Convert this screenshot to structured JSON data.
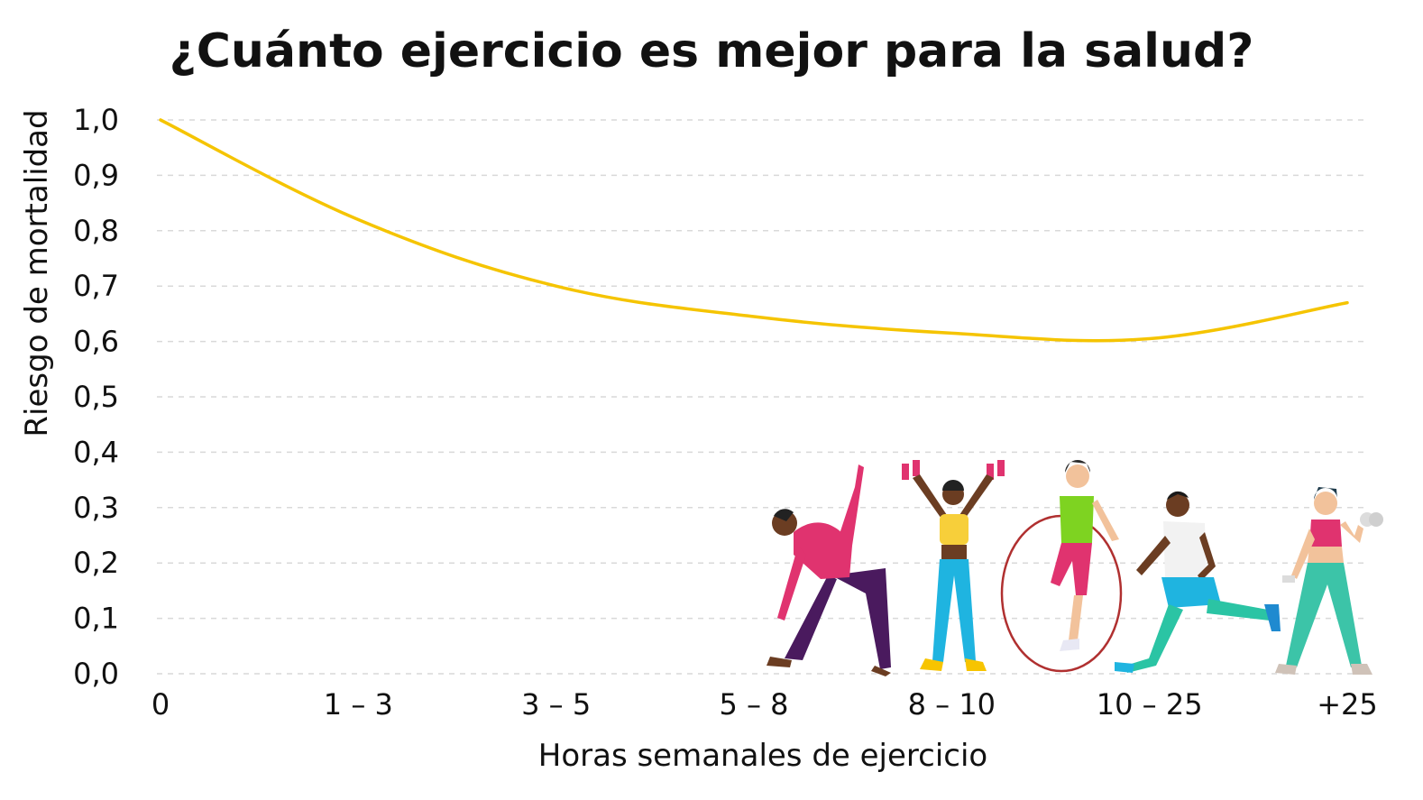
{
  "chart_data": {
    "type": "line",
    "title": "¿Cuánto ejercicio es mejor para la salud?",
    "xlabel": "Horas semanales de ejercicio",
    "ylabel": "Riesgo de mortalidad",
    "categories": [
      "0",
      "1 – 3",
      "3 – 5",
      "5 – 8",
      "8 – 10",
      "10 – 25",
      "+25"
    ],
    "series": [
      {
        "values": [
          1.0,
          0.82,
          0.7,
          0.645,
          0.615,
          0.605,
          0.67
        ]
      }
    ],
    "yticks": [
      "0,0",
      "0,1",
      "0,2",
      "0,3",
      "0,4",
      "0,5",
      "0,6",
      "0,7",
      "0,8",
      "0,9",
      "1,0"
    ],
    "ylim": [
      0,
      1.0
    ],
    "grid": true,
    "colors": {
      "line": "#f5c400",
      "grid": "#d9d9d9",
      "text": "#111111"
    },
    "illustrations": [
      "stretching-figure-icon",
      "dumbbell-lift-figure-icon",
      "jump-rope-figure-icon",
      "running-figure-icon",
      "arm-curl-figure-icon"
    ]
  }
}
